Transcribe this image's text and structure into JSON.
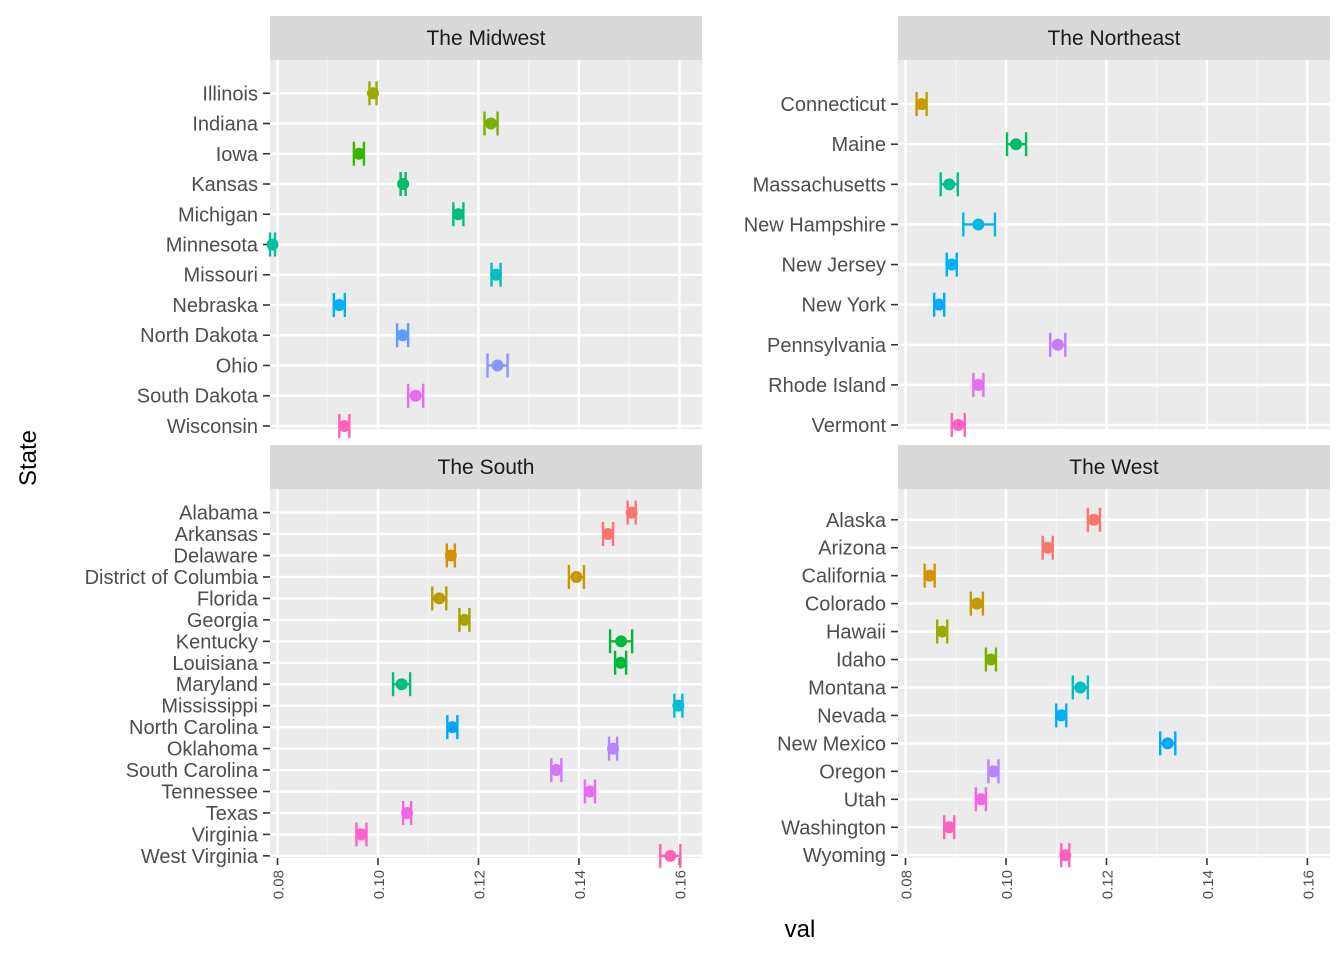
{
  "chart_data": {
    "type": "scatter",
    "subtype": "faceted point range (point estimate with error bars)",
    "xlabel": "val",
    "ylabel": "State",
    "xlim": [
      0.0785,
      0.1645
    ],
    "x_ticks": [
      0.08,
      0.1,
      0.12,
      0.14,
      0.16
    ],
    "x_tick_labels": [
      "0.08",
      "0.10",
      "0.12",
      "0.14",
      "0.16"
    ],
    "grid": true,
    "legend": "none",
    "panel_background": "#ebebeb",
    "strip_background": "#d9d9d9",
    "panels": [
      {
        "title": "The Midwest",
        "states": [
          "Wisconsin",
          "South Dakota",
          "Ohio",
          "North Dakota",
          "Nebraska",
          "Missouri",
          "Minnesota",
          "Michigan",
          "Kansas",
          "Iowa",
          "Indiana",
          "Illinois"
        ],
        "values": [
          0.0933,
          0.1075,
          0.1238,
          0.1049,
          0.0923,
          0.1235,
          0.079,
          0.116,
          0.105,
          0.0962,
          0.1225,
          0.099
        ],
        "lower": [
          0.0923,
          0.106,
          0.1218,
          0.1038,
          0.0912,
          0.1226,
          0.0785,
          0.115,
          0.1045,
          0.0952,
          0.1212,
          0.0983
        ],
        "upper": [
          0.0943,
          0.109,
          0.1258,
          0.106,
          0.0934,
          0.1244,
          0.0795,
          0.117,
          0.1055,
          0.0972,
          0.1238,
          0.0997
        ],
        "colors": [
          "#FF62BC",
          "#E76BF3",
          "#8C94FF",
          "#5C9DFF",
          "#00B0F6",
          "#00BFC4",
          "#00C19A",
          "#00BF7D",
          "#00BE67",
          "#39B600",
          "#7CAE00",
          "#9BAB00"
        ]
      },
      {
        "title": "The Northeast",
        "states": [
          "Vermont",
          "Rhode Island",
          "Pennsylvania",
          "New York",
          "New Jersey",
          "New Hampshire",
          "Massachusetts",
          "Maine",
          "Connecticut"
        ],
        "values": [
          0.0905,
          0.0945,
          0.1103,
          0.0867,
          0.0892,
          0.0945,
          0.0887,
          0.102,
          0.0832
        ],
        "lower": [
          0.0892,
          0.0935,
          0.1088,
          0.0857,
          0.0882,
          0.0915,
          0.087,
          0.1002,
          0.0822
        ],
        "upper": [
          0.0918,
          0.0955,
          0.1118,
          0.0877,
          0.0902,
          0.0978,
          0.0904,
          0.104,
          0.0842
        ],
        "colors": [
          "#FF62BC",
          "#E76BF3",
          "#C77CFF",
          "#00A9FF",
          "#00B0F6",
          "#00B8E7",
          "#00C08B",
          "#00BE67",
          "#C49A00"
        ]
      },
      {
        "title": "The South",
        "states": [
          "West Virginia",
          "Virginia",
          "Texas",
          "Tennessee",
          "South Carolina",
          "Oklahoma",
          "North Carolina",
          "Mississippi",
          "Maryland",
          "Louisiana",
          "Kentucky",
          "Georgia",
          "Florida",
          "District of Columbia",
          "Delaware",
          "Arkansas",
          "Alabama"
        ],
        "values": [
          0.1582,
          0.0967,
          0.1058,
          0.1422,
          0.1355,
          0.1468,
          0.1148,
          0.1598,
          0.1047,
          0.1483,
          0.1484,
          0.1172,
          0.1122,
          0.1395,
          0.1145,
          0.1458,
          0.1505
        ],
        "lower": [
          0.1562,
          0.0957,
          0.105,
          0.1412,
          0.1345,
          0.146,
          0.1138,
          0.159,
          0.103,
          0.1472,
          0.1462,
          0.1162,
          0.1108,
          0.138,
          0.1137,
          0.1448,
          0.1497
        ],
        "upper": [
          0.1602,
          0.0977,
          0.1066,
          0.1432,
          0.1365,
          0.1476,
          0.1158,
          0.1606,
          0.1064,
          0.1494,
          0.1506,
          0.1182,
          0.1136,
          0.141,
          0.1153,
          0.1468,
          0.1513
        ],
        "colors": [
          "#FF64B0",
          "#FF61C9",
          "#F564E3",
          "#E76BF3",
          "#D277FF",
          "#B385FF",
          "#00A5FF",
          "#00BCD8",
          "#00BF7D",
          "#00BA38",
          "#00B938",
          "#A3A500",
          "#B79F00",
          "#C49A00",
          "#D89000",
          "#F8766D",
          "#F8766D"
        ]
      },
      {
        "title": "The West",
        "states": [
          "Wyoming",
          "Washington",
          "Utah",
          "Oregon",
          "New Mexico",
          "Nevada",
          "Montana",
          "Idaho",
          "Hawaii",
          "Colorado",
          "California",
          "Arizona",
          "Alaska"
        ],
        "values": [
          0.1118,
          0.0887,
          0.095,
          0.0975,
          0.1322,
          0.111,
          0.1148,
          0.097,
          0.0873,
          0.0942,
          0.0848,
          0.1083,
          0.1175
        ],
        "lower": [
          0.111,
          0.0877,
          0.094,
          0.0965,
          0.1307,
          0.11,
          0.1133,
          0.096,
          0.0863,
          0.093,
          0.0838,
          0.1073,
          0.1163
        ],
        "upper": [
          0.1126,
          0.0897,
          0.096,
          0.0985,
          0.1337,
          0.112,
          0.1163,
          0.098,
          0.0883,
          0.0954,
          0.0858,
          0.1093,
          0.1187
        ],
        "colors": [
          "#FF62BC",
          "#FF62BC",
          "#F564E3",
          "#B385FF",
          "#00A9FF",
          "#00B0F6",
          "#00BFC4",
          "#7CAE00",
          "#9BAB00",
          "#C49A00",
          "#D89000",
          "#F8766D",
          "#F8766D"
        ]
      }
    ]
  }
}
